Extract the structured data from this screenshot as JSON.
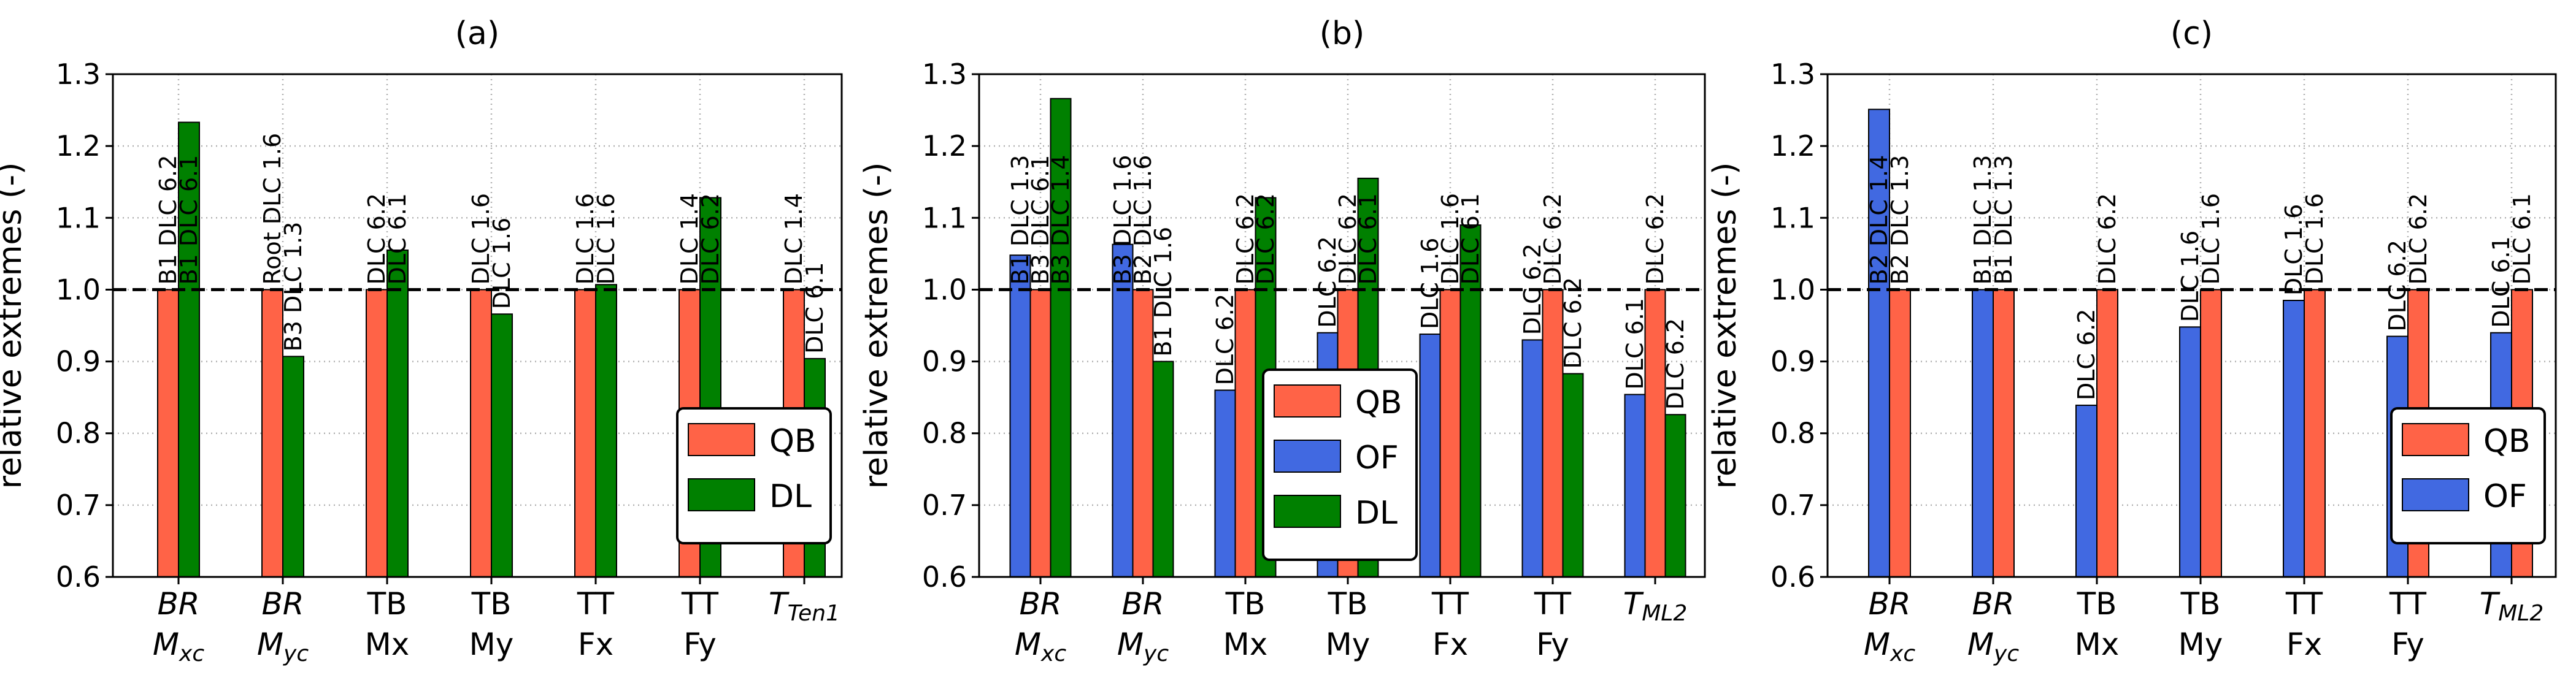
{
  "chart_data": [
    {
      "type": "bar",
      "panel": "a",
      "title": "(a)",
      "xlabel": "",
      "ylabel": "relative extremes (-)",
      "ylim": [
        0.6,
        1.3
      ],
      "yticks": [
        "0.6",
        "0.7",
        "0.8",
        "0.9",
        "1.0",
        "1.1",
        "1.2",
        "1.3"
      ],
      "grid": true,
      "reference_line": 1.0,
      "legend_position": "lower-right",
      "categories": [
        {
          "line1": "BR",
          "line2": "M",
          "line2_sub": "xc",
          "italic": true
        },
        {
          "line1": "BR",
          "line2": "M",
          "line2_sub": "yc",
          "italic": true
        },
        {
          "line1": "TB",
          "line2": "Mx",
          "line2_sub": "",
          "italic": false
        },
        {
          "line1": "TB",
          "line2": "My",
          "line2_sub": "",
          "italic": false
        },
        {
          "line1": "TT",
          "line2": "Fx",
          "line2_sub": "",
          "italic": false
        },
        {
          "line1": "TT",
          "line2": "Fy",
          "line2_sub": "",
          "italic": false
        },
        {
          "line1": "T",
          "line1_sub": "Ten1",
          "line2": "",
          "line2_sub": "",
          "italic": true
        }
      ],
      "series": [
        {
          "name": "QB",
          "color": "#FF6347",
          "values": [
            1.0,
            1.0,
            1.0,
            1.0,
            1.0,
            1.0,
            1.0
          ],
          "annotations": [
            "B1 DLC 6.2",
            "Root DLC 1.6",
            "DLC 6.2",
            "DLC 1.6",
            "DLC 1.6",
            "DLC 1.4",
            "DLC 1.4"
          ]
        },
        {
          "name": "DL",
          "color": "#008000",
          "values": [
            1.233,
            0.907,
            1.055,
            0.966,
            1.007,
            1.128,
            0.904
          ],
          "annotations": [
            "B1 DLC 6.1",
            "B3 DLC 1.3",
            "DLC 6.1",
            "DLC 1.6",
            "DLC 1.6",
            "DLC 6.2",
            "DLC 6.1"
          ]
        }
      ]
    },
    {
      "type": "bar",
      "panel": "b",
      "title": "(b)",
      "xlabel": "",
      "ylabel": "relative extremes (-)",
      "ylim": [
        0.6,
        1.3
      ],
      "yticks": [
        "0.6",
        "0.7",
        "0.8",
        "0.9",
        "1.0",
        "1.1",
        "1.2",
        "1.3"
      ],
      "grid": true,
      "reference_line": 1.0,
      "legend_position": "lower-center",
      "categories": [
        {
          "line1": "BR",
          "line2": "M",
          "line2_sub": "xc",
          "italic": true
        },
        {
          "line1": "BR",
          "line2": "M",
          "line2_sub": "yc",
          "italic": true
        },
        {
          "line1": "TB",
          "line2": "Mx",
          "line2_sub": "",
          "italic": false
        },
        {
          "line1": "TB",
          "line2": "My",
          "line2_sub": "",
          "italic": false
        },
        {
          "line1": "TT",
          "line2": "Fx",
          "line2_sub": "",
          "italic": false
        },
        {
          "line1": "TT",
          "line2": "Fy",
          "line2_sub": "",
          "italic": false
        },
        {
          "line1": "T",
          "line1_sub": "ML2",
          "line2": "",
          "line2_sub": "",
          "italic": true
        }
      ],
      "series": [
        {
          "name": "OF",
          "color": "#4169E1",
          "values": [
            1.048,
            1.063,
            0.86,
            0.94,
            0.938,
            0.93,
            0.854
          ],
          "annotations": [
            "B1 DLC 1.3",
            "B3 DLC 1.6",
            "DLC 6.2",
            "DLC 6.2",
            "DLC 1.6",
            "DLC 6.2",
            "DLC 6.1"
          ]
        },
        {
          "name": "QB",
          "color": "#FF6347",
          "values": [
            1.0,
            1.0,
            1.0,
            1.0,
            1.0,
            1.0,
            1.0
          ],
          "annotations": [
            "B3 DLC 6.1",
            "B2 DLC 1.6",
            "DLC 6.2",
            "DLC 6.2",
            "DLC 1.6",
            "DLC 6.2",
            "DLC 6.2"
          ]
        },
        {
          "name": "DL",
          "color": "#008000",
          "values": [
            1.266,
            0.9,
            1.128,
            1.155,
            1.09,
            0.883,
            0.826
          ],
          "annotations": [
            "B3 DLC 1.4",
            "B1 DLC 1.6",
            "DLC 6.2",
            "DLC 6.1",
            "DLC 6.1",
            "DLC 6.2",
            "DLC 6.2"
          ]
        }
      ],
      "legend_order": [
        "QB",
        "OF",
        "DL"
      ]
    },
    {
      "type": "bar",
      "panel": "c",
      "title": "(c)",
      "xlabel": "",
      "ylabel": "relative extremes (-)",
      "ylim": [
        0.6,
        1.3
      ],
      "yticks": [
        "0.6",
        "0.7",
        "0.8",
        "0.9",
        "1.0",
        "1.1",
        "1.2",
        "1.3"
      ],
      "grid": true,
      "reference_line": 1.0,
      "legend_position": "lower-right",
      "categories": [
        {
          "line1": "BR",
          "line2": "M",
          "line2_sub": "xc",
          "italic": true
        },
        {
          "line1": "BR",
          "line2": "M",
          "line2_sub": "yc",
          "italic": true
        },
        {
          "line1": "TB",
          "line2": "Mx",
          "line2_sub": "",
          "italic": false
        },
        {
          "line1": "TB",
          "line2": "My",
          "line2_sub": "",
          "italic": false
        },
        {
          "line1": "TT",
          "line2": "Fx",
          "line2_sub": "",
          "italic": false
        },
        {
          "line1": "TT",
          "line2": "Fy",
          "line2_sub": "",
          "italic": false
        },
        {
          "line1": "T",
          "line1_sub": "ML2",
          "line2": "",
          "line2_sub": "",
          "italic": true
        }
      ],
      "series": [
        {
          "name": "OF",
          "color": "#4169E1",
          "values": [
            1.251,
            1.0,
            0.839,
            0.948,
            0.985,
            0.935,
            0.94
          ],
          "annotations": [
            "B2 DLC 1.4",
            "B1 DLC 1.3",
            "DLC 6.2",
            "DLC 1.6",
            "DLC 1.6",
            "DLC 6.2",
            "DLC 6.1"
          ]
        },
        {
          "name": "QB",
          "color": "#FF6347",
          "values": [
            1.0,
            1.0,
            1.0,
            1.0,
            1.0,
            1.0,
            1.0
          ],
          "annotations": [
            "B2 DLC 1.3",
            "B1 DLC 1.3",
            "DLC 6.2",
            "DLC 1.6",
            "DLC 1.6",
            "DLC 6.2",
            "DLC 6.1"
          ]
        }
      ],
      "legend_order": [
        "QB",
        "OF"
      ]
    }
  ]
}
